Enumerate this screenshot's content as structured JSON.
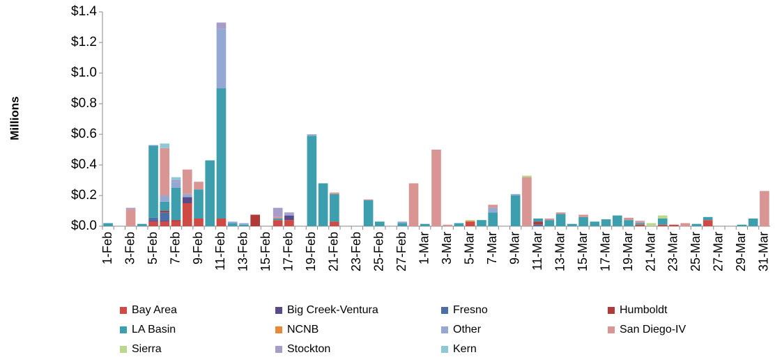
{
  "chart_data": {
    "type": "stacked_bar",
    "y_label": "Millions",
    "categories": [
      "1-Feb",
      null,
      "3-Feb",
      null,
      "5-Feb",
      null,
      "7-Feb",
      null,
      "9-Feb",
      null,
      "11-Feb",
      null,
      "13-Feb",
      null,
      "15-Feb",
      null,
      "17-Feb",
      null,
      "19-Feb",
      null,
      "21-Feb",
      null,
      "23-Feb",
      null,
      "25-Feb",
      null,
      "27-Feb",
      null,
      "1-Mar",
      null,
      "3-Mar",
      null,
      "5-Mar",
      null,
      "7-Mar",
      null,
      "9-Mar",
      null,
      "11-Mar",
      null,
      "13-Mar",
      null,
      "15-Mar",
      null,
      "17-Mar",
      null,
      "19-Mar",
      null,
      "21-Mar",
      null,
      "23-Mar",
      null,
      "25-Mar",
      null,
      "27-Mar",
      null,
      "29-Mar",
      null,
      "31-Mar"
    ],
    "series": [
      {
        "name": "Bay Area",
        "color": "#d04a45",
        "values": [
          0,
          0,
          0,
          0,
          0.03,
          0.03,
          0.03,
          0.15,
          0.05,
          0,
          0.05,
          0,
          0,
          0,
          0,
          0.04,
          0.04,
          0,
          0,
          0,
          0.03,
          0,
          0,
          0,
          0,
          0,
          0,
          0,
          0,
          0,
          0,
          0,
          0.03,
          0,
          0,
          0,
          0,
          0,
          0,
          0,
          0,
          0,
          0,
          0,
          0,
          0,
          0,
          0.01,
          0,
          0.01,
          0.01,
          0,
          0,
          0.04,
          0,
          0,
          0,
          0,
          0
        ]
      },
      {
        "name": "Big Creek-Ventura",
        "color": "#5b4a8a",
        "values": [
          0,
          0,
          0,
          0,
          0.01,
          0.01,
          0,
          0.04,
          0,
          0,
          0,
          0,
          0,
          0,
          0,
          0,
          0.03,
          0,
          0,
          0,
          0,
          0,
          0,
          0,
          0,
          0,
          0,
          0,
          0,
          0,
          0,
          0,
          0,
          0,
          0,
          0,
          0,
          0,
          0,
          0,
          0,
          0,
          0,
          0,
          0,
          0,
          0,
          0,
          0,
          0,
          0,
          0,
          0,
          0,
          0,
          0,
          0,
          0,
          0
        ]
      },
      {
        "name": "Fresno",
        "color": "#4a6fa8",
        "values": [
          0,
          0,
          0,
          0,
          0.015,
          0.05,
          0,
          0,
          0,
          0,
          0,
          0,
          0,
          0,
          0,
          0,
          0,
          0,
          0,
          0,
          0,
          0,
          0,
          0,
          0,
          0,
          0,
          0,
          0,
          0,
          0,
          0,
          0,
          0,
          0,
          0,
          0,
          0,
          0.01,
          0,
          0,
          0,
          0,
          0,
          0,
          0,
          0,
          0,
          0,
          0,
          0,
          0,
          0,
          0,
          0,
          0,
          0,
          0,
          0
        ]
      },
      {
        "name": "Humboldt",
        "color": "#b03a38",
        "values": [
          0,
          0,
          0,
          0,
          0,
          0.01,
          0.01,
          0,
          0,
          0,
          0,
          0,
          0,
          0.075,
          0,
          0,
          0,
          0,
          0,
          0,
          0,
          0,
          0,
          0,
          0,
          0,
          0,
          0,
          0,
          0,
          0,
          0,
          0,
          0,
          0,
          0,
          0,
          0,
          0.02,
          0,
          0,
          0,
          0,
          0,
          0,
          0,
          0,
          0,
          0,
          0,
          0,
          0,
          0,
          0,
          0,
          0,
          0,
          0,
          0
        ]
      },
      {
        "name": "LA Basin",
        "color": "#3d9fad",
        "values": [
          0.02,
          0,
          0,
          0.015,
          0.47,
          0.06,
          0.21,
          0,
          0.19,
          0.43,
          0.85,
          0.02,
          0.01,
          0,
          0,
          0.01,
          0,
          0,
          0.59,
          0.28,
          0.18,
          0,
          0,
          0.17,
          0.03,
          0,
          0.02,
          0,
          0.015,
          0,
          0,
          0.02,
          0,
          0.04,
          0.09,
          0,
          0.2,
          0,
          0.02,
          0.04,
          0.08,
          0.015,
          0.06,
          0.03,
          0.045,
          0.07,
          0.04,
          0.01,
          0,
          0.04,
          0,
          0,
          0.015,
          0.02,
          0,
          0,
          0.01,
          0.05,
          0
        ]
      },
      {
        "name": "NCNB",
        "color": "#e8893a",
        "values": [
          0,
          0,
          0,
          0,
          0,
          0,
          0,
          0,
          0,
          0,
          0,
          0,
          0,
          0,
          0,
          0,
          0,
          0,
          0,
          0,
          0,
          0,
          0,
          0,
          0,
          0,
          0,
          0,
          0,
          0,
          0,
          0,
          0.005,
          0,
          0,
          0,
          0,
          0,
          0,
          0,
          0,
          0,
          0,
          0,
          0,
          0,
          0,
          0,
          0,
          0,
          0,
          0,
          0,
          0,
          0,
          0,
          0,
          0,
          0
        ]
      },
      {
        "name": "Other",
        "color": "#95a8d4",
        "values": [
          0,
          0,
          0,
          0,
          0.005,
          0.04,
          0.04,
          0.02,
          0,
          0,
          0.39,
          0.01,
          0.01,
          0,
          0,
          0,
          0.01,
          0,
          0.01,
          0,
          0,
          0,
          0,
          0,
          0,
          0,
          0.01,
          0,
          0,
          0,
          0,
          0,
          0,
          0,
          0.03,
          0,
          0.01,
          0,
          0,
          0,
          0,
          0,
          0,
          0,
          0,
          0,
          0,
          0,
          0,
          0,
          0,
          0,
          0,
          0,
          0,
          0,
          0,
          0,
          0
        ]
      },
      {
        "name": "San Diego-IV",
        "color": "#d99593",
        "values": [
          0,
          0,
          0.11,
          0,
          0,
          0.31,
          0,
          0.16,
          0.05,
          0,
          0,
          0,
          0,
          0,
          0,
          0.01,
          0,
          0,
          0,
          0,
          0.01,
          0,
          0,
          0.005,
          0,
          0,
          0,
          0.28,
          0,
          0.5,
          0.01,
          0,
          0,
          0,
          0.02,
          0,
          0,
          0.32,
          0,
          0.01,
          0.01,
          0,
          0.015,
          0,
          0,
          0,
          0.015,
          0.01,
          0,
          0,
          0,
          0.02,
          0,
          0,
          0,
          0,
          0,
          0,
          0.23
        ]
      },
      {
        "name": "Sierra",
        "color": "#b9d88e",
        "values": [
          0,
          0,
          0,
          0,
          0,
          0,
          0,
          0,
          0,
          0,
          0,
          0,
          0,
          0,
          0,
          0,
          0,
          0,
          0,
          0,
          0,
          0,
          0,
          0,
          0,
          0,
          0,
          0,
          0,
          0,
          0,
          0,
          0.005,
          0,
          0,
          0,
          0,
          0.01,
          0,
          0,
          0,
          0,
          0,
          0,
          0,
          0,
          0,
          0,
          0.02,
          0.02,
          0,
          0,
          0,
          0,
          0,
          0,
          0,
          0,
          0
        ]
      },
      {
        "name": "Stockton",
        "color": "#a89cc9",
        "values": [
          0,
          0,
          0.01,
          0,
          0,
          0,
          0.01,
          0,
          0,
          0,
          0.04,
          0,
          0,
          0,
          0,
          0.06,
          0.01,
          0,
          0,
          0,
          0,
          0,
          0,
          0,
          0,
          0,
          0,
          0,
          0,
          0,
          0,
          0,
          0,
          0,
          0,
          0,
          0,
          0,
          0,
          0,
          0,
          0,
          0,
          0,
          0,
          0,
          0,
          0.005,
          0,
          0,
          0,
          0,
          0,
          0,
          0,
          0,
          0,
          0,
          0
        ]
      },
      {
        "name": "Kern",
        "color": "#8ec8d6",
        "values": [
          0,
          0,
          0,
          0,
          0,
          0.03,
          0.02,
          0,
          0,
          0,
          0,
          0,
          0,
          0,
          0,
          0,
          0,
          0,
          0,
          0,
          0,
          0,
          0,
          0,
          0,
          0,
          0,
          0,
          0,
          0,
          0,
          0,
          0,
          0,
          0,
          0,
          0,
          0,
          0,
          0,
          0,
          0,
          0,
          0,
          0,
          0,
          0,
          0,
          0,
          0,
          0,
          0,
          0,
          0,
          0,
          0,
          0,
          0,
          0
        ]
      }
    ],
    "ylim": [
      0,
      1.4
    ],
    "yticks": [
      {
        "value": 0,
        "label": "$0.0"
      },
      {
        "value": 0.2,
        "label": "$0.2"
      },
      {
        "value": 0.4,
        "label": "$0.4"
      },
      {
        "value": 0.6,
        "label": "$0.6"
      },
      {
        "value": 0.8,
        "label": "$0.8"
      },
      {
        "value": 1.0,
        "label": "$1.0"
      },
      {
        "value": 1.2,
        "label": "$1.2"
      },
      {
        "value": 1.4,
        "label": "$1.4"
      }
    ],
    "grid": false
  }
}
